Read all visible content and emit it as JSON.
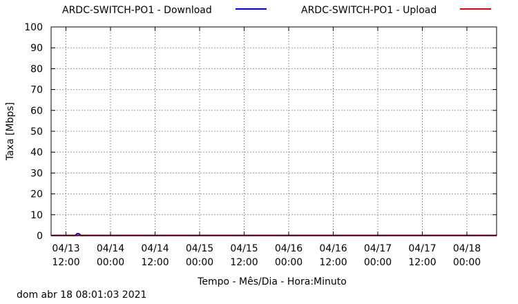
{
  "timestamp": "dom abr 18 08:01:03 2021",
  "chart_data": {
    "type": "line",
    "title": "",
    "xlabel": "Tempo - Mês/Dia - Hora:Minuto",
    "ylabel": "Taxa [Mbps]",
    "ylim": [
      0,
      100
    ],
    "yticks": [
      0,
      10,
      20,
      30,
      40,
      50,
      60,
      70,
      80,
      90,
      100
    ],
    "xlim": [
      "2021-04-13 08:00",
      "2021-04-18 08:00"
    ],
    "xticks": [
      {
        "at": "2021-04-13 12:00",
        "line1": "04/13",
        "line2": "12:00"
      },
      {
        "at": "2021-04-14 00:00",
        "line1": "04/14",
        "line2": "00:00"
      },
      {
        "at": "2021-04-14 12:00",
        "line1": "04/14",
        "line2": "12:00"
      },
      {
        "at": "2021-04-15 00:00",
        "line1": "04/15",
        "line2": "00:00"
      },
      {
        "at": "2021-04-15 12:00",
        "line1": "04/15",
        "line2": "12:00"
      },
      {
        "at": "2021-04-16 00:00",
        "line1": "04/16",
        "line2": "00:00"
      },
      {
        "at": "2021-04-16 12:00",
        "line1": "04/16",
        "line2": "12:00"
      },
      {
        "at": "2021-04-17 00:00",
        "line1": "04/17",
        "line2": "00:00"
      },
      {
        "at": "2021-04-17 12:00",
        "line1": "04/17",
        "line2": "12:00"
      },
      {
        "at": "2021-04-18 00:00",
        "line1": "04/18",
        "line2": "00:00"
      }
    ],
    "grid": true,
    "legend_position": "top",
    "series": [
      {
        "name": "ARDC-SWITCH-PO1 - Download",
        "color": "#0000cc",
        "x": [
          "2021-04-13 08:00",
          "2021-04-13 14:30",
          "2021-04-13 15:00",
          "2021-04-13 15:30",
          "2021-04-13 16:00",
          "2021-04-14 00:00",
          "2021-04-15 00:00",
          "2021-04-16 00:00",
          "2021-04-17 00:00",
          "2021-04-18 00:00",
          "2021-04-18 08:00"
        ],
        "values": [
          0.1,
          0.1,
          0.9,
          0.9,
          0.1,
          0.1,
          0.1,
          0.1,
          0.1,
          0.1,
          0.1
        ]
      },
      {
        "name": "ARDC-SWITCH-PO1 - Upload",
        "color": "#dd0000",
        "x": [
          "2021-04-13 08:00",
          "2021-04-14 00:00",
          "2021-04-15 00:00",
          "2021-04-16 00:00",
          "2021-04-17 00:00",
          "2021-04-18 00:00",
          "2021-04-18 08:00"
        ],
        "values": [
          0.1,
          0.1,
          0.1,
          0.1,
          0.1,
          0.1,
          0.1
        ]
      }
    ]
  }
}
